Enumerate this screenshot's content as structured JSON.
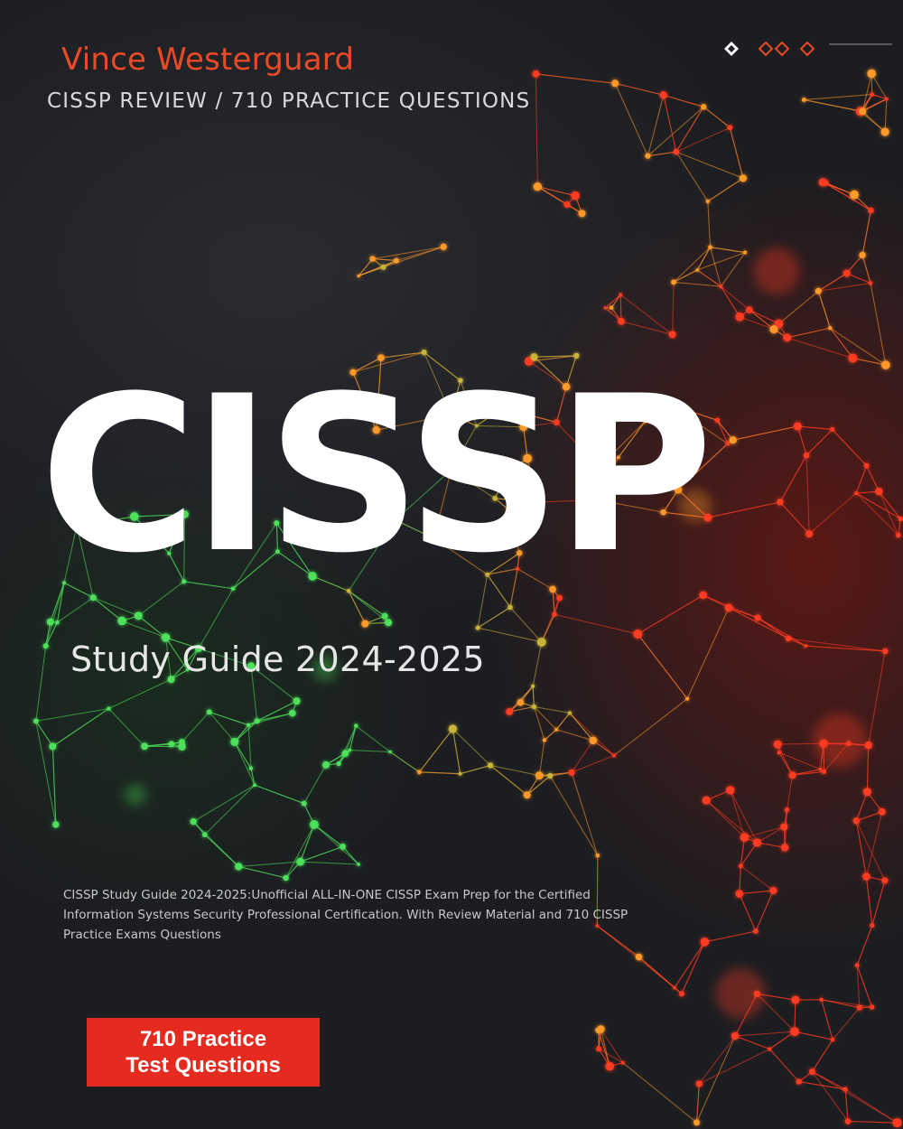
{
  "cover": {
    "author": "Vince Westerguard",
    "series": "CISSP REVIEW / 710 PRACTICE QUESTIONS",
    "title": "CISSP",
    "subtitle": "Study Guide 2024-2025",
    "description": "CISSP Study Guide 2024-2025:Unofficial ALL-IN-ONE CISSP Exam Prep for the Certified Information Systems Security Professional Certification. With Review Material and 710 CISSP Practice Exams Questions",
    "badge": {
      "line1": "710 Practice",
      "line2": "Test Questions"
    }
  },
  "colors": {
    "author": "#ea4a26",
    "badge_background": "#e52a1f",
    "background": "#1f2024",
    "network_red": "#ff3a22",
    "network_orange": "#ff9a2a",
    "network_green": "#4ee05a"
  },
  "icons": {
    "publisher_logo": "diamond-logo-icon",
    "background_art": "network-nodes-illustration"
  }
}
